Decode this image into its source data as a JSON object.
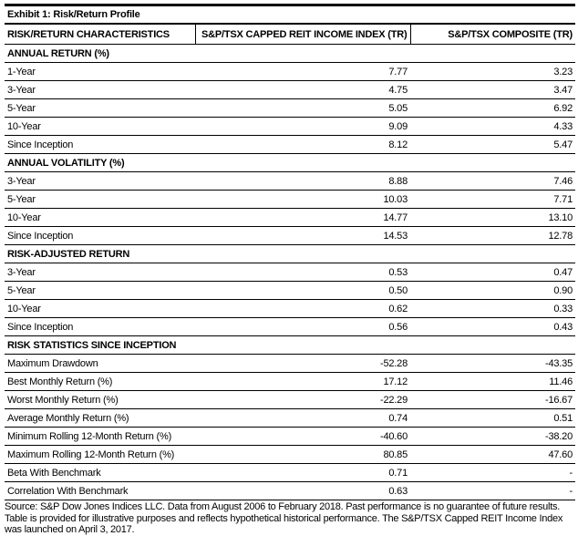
{
  "title": "Exhibit 1: Risk/Return Profile",
  "headers": [
    "RISK/RETURN CHARACTERISTICS",
    "S&P/TSX CAPPED REIT INCOME INDEX (TR)",
    "S&P/TSX COMPOSITE (TR)"
  ],
  "sections": [
    {
      "label": "ANNUAL RETURN (%)",
      "rows": [
        [
          "1-Year",
          "7.77",
          "3.23"
        ],
        [
          "3-Year",
          "4.75",
          "3.47"
        ],
        [
          "5-Year",
          "5.05",
          "6.92"
        ],
        [
          "10-Year",
          "9.09",
          "4.33"
        ],
        [
          "Since Inception",
          "8.12",
          "5.47"
        ]
      ]
    },
    {
      "label": "ANNUAL VOLATILITY (%)",
      "rows": [
        [
          "3-Year",
          "8.88",
          "7.46"
        ],
        [
          "5-Year",
          "10.03",
          "7.71"
        ],
        [
          "10-Year",
          "14.77",
          "13.10"
        ],
        [
          "Since Inception",
          "14.53",
          "12.78"
        ]
      ]
    },
    {
      "label": "RISK-ADJUSTED RETURN",
      "rows": [
        [
          "3-Year",
          "0.53",
          "0.47"
        ],
        [
          "5-Year",
          "0.50",
          "0.90"
        ],
        [
          "10-Year",
          "0.62",
          "0.33"
        ],
        [
          "Since Inception",
          "0.56",
          "0.43"
        ]
      ]
    },
    {
      "label": "RISK STATISTICS SINCE INCEPTION",
      "rows": [
        [
          "Maximum Drawdown",
          "-52.28",
          "-43.35"
        ],
        [
          "Best Monthly Return (%)",
          "17.12",
          "11.46"
        ],
        [
          "Worst Monthly Return (%)",
          "-22.29",
          "-16.67"
        ],
        [
          "Average Monthly Return (%)",
          "0.74",
          "0.51"
        ],
        [
          "Minimum Rolling 12-Month Return (%)",
          "-40.60",
          "-38.20"
        ],
        [
          "Maximum Rolling 12-Month Return (%)",
          "80.85",
          "47.60"
        ],
        [
          "Beta With Benchmark",
          "0.71",
          "-"
        ],
        [
          "Correlation With Benchmark",
          "0.63",
          "-"
        ]
      ]
    }
  ],
  "footnote": "Source: S&P Dow Jones Indices LLC. Data from August 2006 to February 2018. Past performance is no guarantee of future results. Table is provided for illustrative purposes and reflects hypothetical historical performance. The S&P/TSX Capped REIT Income Index was launched on April 3, 2017."
}
